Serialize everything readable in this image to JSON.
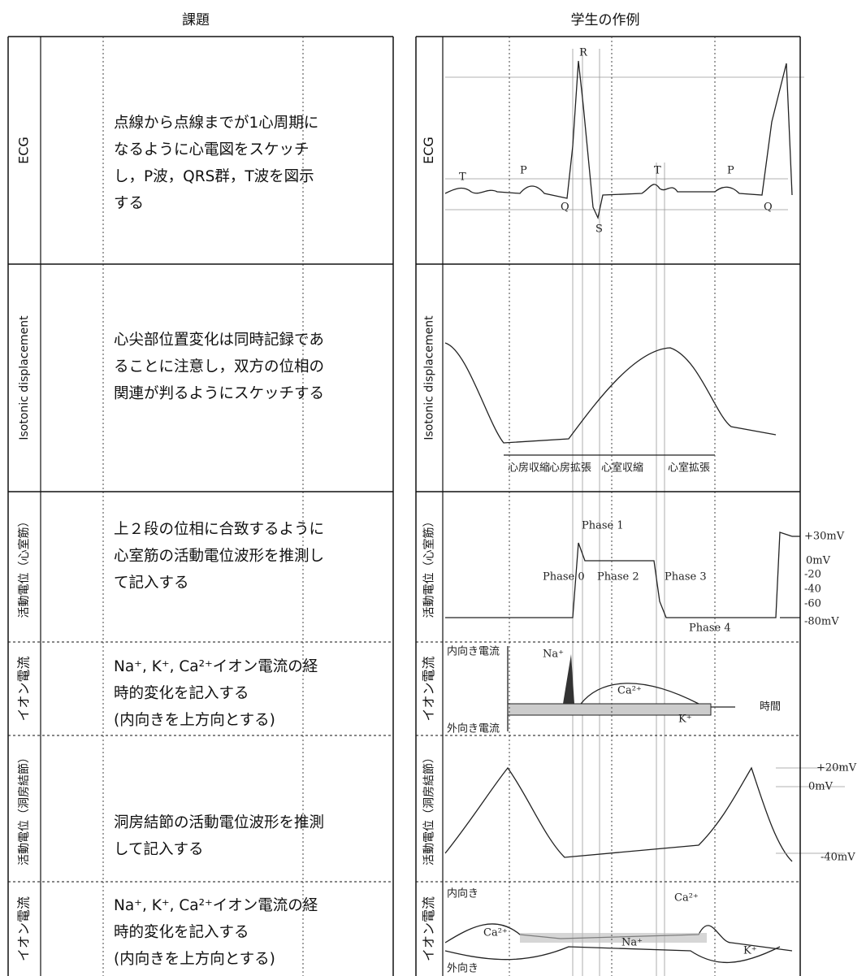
{
  "headers": {
    "task": "課題",
    "example": "学生の作例"
  },
  "rows": [
    {
      "label": "ECG",
      "task": [
        "点線から点線までが1心周期に",
        "なるように心電図をスケッチ",
        "し，P波，QRS群，T波を図示",
        "する"
      ]
    },
    {
      "label": "Isotonic displacement",
      "task": [
        "心尖部位置変化は同時記録であ",
        "ることに注意し，双方の位相の",
        "関連が判るようにスケッチする"
      ]
    },
    {
      "label": "活動電位（心室筋）",
      "task": [
        "上２段の位相に合致するように",
        "心室筋の活動電位波形を推測し",
        "て記入する"
      ]
    },
    {
      "label": "イオン電流",
      "task": [
        "Na⁺, K⁺, Ca²⁺イオン電流の経",
        "時的変化を記入する",
        "(内向きを上方向とする)"
      ]
    },
    {
      "label": "活動電位（洞房結節）",
      "task": [
        "洞房結節の活動電位波形を推測",
        "して記入する"
      ]
    },
    {
      "label": "イオン電流",
      "task": [
        "Na⁺, K⁺, Ca²⁺イオン電流の経",
        "時的変化を記入する",
        "(内向きを上方向とする)"
      ]
    }
  ],
  "annotations": {
    "ecg": [
      "T",
      "P",
      "Q",
      "R",
      "S",
      "T",
      "P",
      "Q"
    ],
    "displacement": [
      "心房収縮",
      "心房拡張",
      "心室収縮",
      "心室拡張"
    ],
    "ventricular_ap": [
      "Phase 1",
      "Phase 0",
      "Phase 2",
      "Phase 3",
      "Phase 4",
      "+30mV",
      "0mV",
      "-20",
      "-40",
      "-60",
      "-80mV"
    ],
    "ion_current_1": [
      "内向き電流",
      "外向き電流",
      "Na⁺",
      "Ca²⁺",
      "K⁺",
      "時間"
    ],
    "sa_node_ap": [
      "+20mV",
      "0mV",
      "-40mV"
    ],
    "ion_current_2": [
      "内向き",
      "外向き",
      "Ca²⁺",
      "Ca²⁺",
      "Na⁺",
      "K⁺"
    ]
  }
}
